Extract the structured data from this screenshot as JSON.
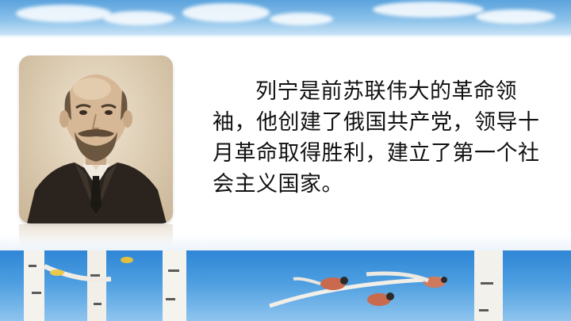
{
  "slide": {
    "text": "列宁是前苏联伟大的革命领袖，他创建了俄国共产党，领导十月革命取得胜利，建立了第一个社会主义国家。"
  },
  "portrait": {
    "subject": "portrait-photo"
  },
  "colors": {
    "sky": "#4c9ee0",
    "sky_light": "#cfe6f7",
    "sepia": "#d9c8ad",
    "text": "#111111",
    "bird": "#c96a4e"
  }
}
